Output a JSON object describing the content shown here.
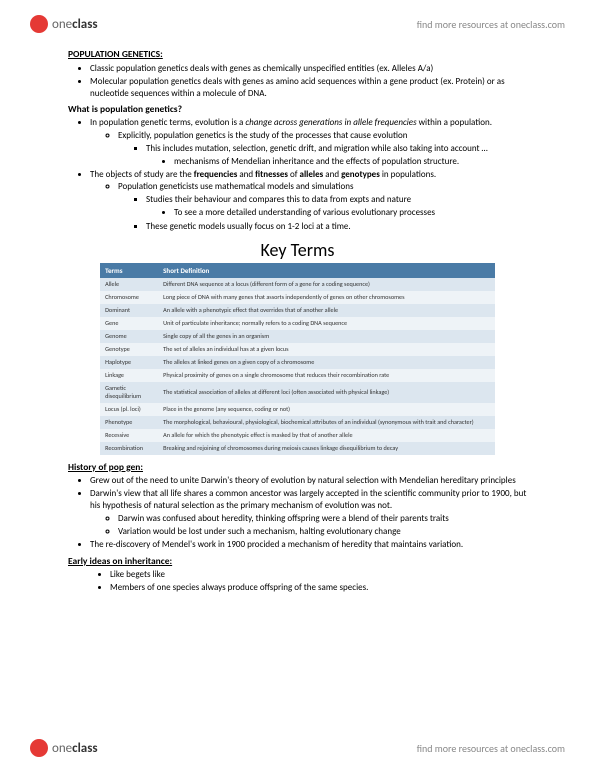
{
  "header": {
    "logo_one": "one",
    "logo_class": "class",
    "link": "find more resources at oneclass.com"
  },
  "s1": {
    "title": "POPULATION GENETICS:",
    "p1": "Classic population genetics deals with genes as chemically unspecified entities (ex. Alleles A/a)",
    "p2": "Molecular population genetics deals with genes as amino acid sequences within a gene product (ex. Protein) or as nucleotide sequences within a molecule of DNA."
  },
  "s2": {
    "title": "What is population genetics?",
    "p1a": "In population genetic terms, evolution is a ",
    "p1i": "change across generations in allele frequencies",
    "p1b": " within a population.",
    "p2": "Explicitly, population genetics is the study of the processes that cause evolution",
    "p3": "This includes mutation, selection, genetic drift, and migration while also taking into account …",
    "p4": "mechanisms of Mendelian inheritance and the effects of population structure.",
    "p5a": "The objects of study are the ",
    "p5b": "frequencies",
    "p5c": " and ",
    "p5d": "fitnesses",
    "p5e": " of ",
    "p5f": "alleles",
    "p5g": " and ",
    "p5h": "genotypes",
    "p5i": " in populations.",
    "p6": "Population geneticists use mathematical models and simulations",
    "p7": "Studies their behaviour and compares this to data from expts and nature",
    "p8": "To see a more detailed understanding of various evolutionary processes",
    "p9": "These genetic models usually focus on 1-2 loci at a time."
  },
  "keyterms": "Key Terms",
  "table": {
    "h1": "Terms",
    "h2": "Short Definition",
    "rows": [
      {
        "t": "Allele",
        "d": "Different DNA sequence at a locus (different form of a gene for a coding sequence)"
      },
      {
        "t": "Chromosome",
        "d": "Long piece of DNA with many genes that assorts independently of genes on other chromosomes"
      },
      {
        "t": "Dominant",
        "d": "An allele with a phenotypic effect that overrides that of another allele"
      },
      {
        "t": "Gene",
        "d": "Unit of particulate inheritance; normally refers to a coding DNA sequence"
      },
      {
        "t": "Genome",
        "d": "Single copy of all the genes in an organism"
      },
      {
        "t": "Genotype",
        "d": "The set of alleles an individual has at a given locus"
      },
      {
        "t": "Haplotype",
        "d": "The alleles at linked genes on a given copy of a chromosome"
      },
      {
        "t": "Linkage",
        "d": "Physical proximity of genes on a single chromosome that reduces their recombination rate"
      },
      {
        "t": "Gametic disequilibrium",
        "d": "The statistical association of alleles at different loci (often associated with physical linkage)"
      },
      {
        "t": "Locus (pl. loci)",
        "d": "Place in the genome (any sequence, coding or not)"
      },
      {
        "t": "Phenotype",
        "d": "The morphological, behavioural, physiological, biochemical attributes of an individual (synonymous with trait and character)"
      },
      {
        "t": "Recessive",
        "d": "An allele for which the phenotypic effect is masked by that of another allele"
      },
      {
        "t": "Recombination",
        "d": "Breaking and rejoining of chromosomes during meiosis causes linkage disequilibrium to decay"
      }
    ]
  },
  "s3": {
    "title": "History of pop gen:",
    "p1": "Grew out of the need to unite Darwin's theory of evolution by natural selection with Mendelian hereditary principles",
    "p2": "Darwin's view that all life shares a common ancestor was largely accepted in the scientific community prior to 1900, but his hypothesis of natural selection as the primary mechanism of evolution was not.",
    "p3": "Darwin was confused about heredity, thinking offspring were a blend of their parents traits",
    "p4": "Variation would be lost under such a mechanism, halting evolutionary change",
    "p5": "The re-discovery of Mendel's work in 1900 procided a mechanism of heredity that maintains variation."
  },
  "s4": {
    "title": "Early ideas on inheritance:",
    "p1": "Like begets like",
    "p2": "Members of one species always produce offspring of the same species."
  },
  "colors": {
    "th_bg": "#4a7ba6",
    "row_alt": "#dce6ef",
    "row_norm": "#eef3f7",
    "logo_red": "#e53935"
  }
}
